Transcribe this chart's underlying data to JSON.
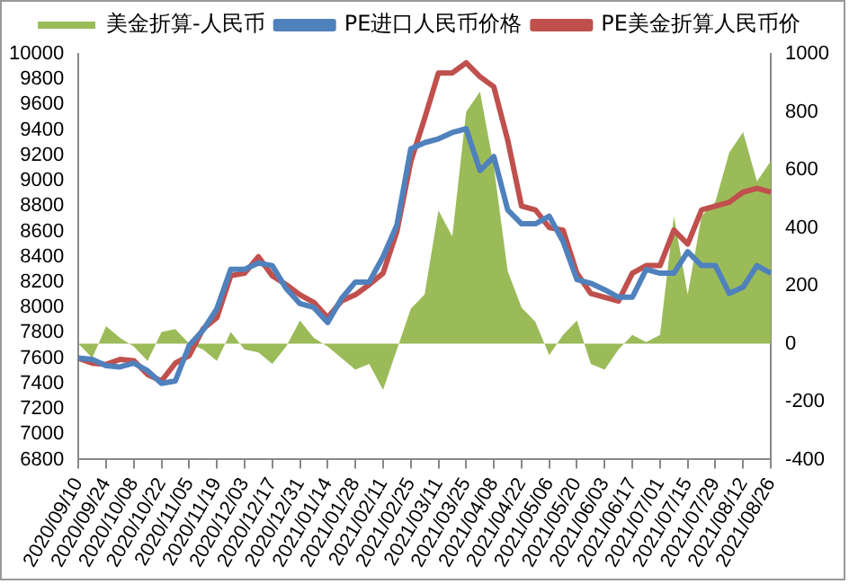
{
  "chart_data": {
    "type": "line",
    "categories": [
      "2020/09/10",
      null,
      "2020/09/24",
      null,
      "2020/10/08",
      null,
      "2020/10/22",
      null,
      "2020/11/05",
      null,
      "2020/11/19",
      null,
      "2020/12/03",
      null,
      "2020/12/17",
      null,
      "2020/12/31",
      null,
      "2021/01/14",
      null,
      "2021/01/28",
      null,
      "2021/02/11",
      null,
      "2021/02/25",
      null,
      "2021/03/11",
      null,
      "2021/03/25",
      null,
      "2021/04/08",
      null,
      "2021/04/22",
      null,
      "2021/05/06",
      null,
      "2021/05/20",
      null,
      "2021/06/03",
      null,
      "2021/06/17",
      null,
      "2021/07/01",
      null,
      "2021/07/15",
      null,
      "2021/07/29",
      null,
      "2021/08/12",
      null,
      "2021/08/26"
    ],
    "series": [
      {
        "name": "美金折算-人民币",
        "type": "area",
        "axis": "y2",
        "color": "#9bbb59",
        "values": [
          0,
          -50,
          60,
          20,
          -10,
          -60,
          40,
          50,
          0,
          -20,
          -60,
          40,
          -20,
          -30,
          -70,
          -10,
          80,
          20,
          -10,
          -50,
          -90,
          -70,
          -160,
          -20,
          120,
          170,
          460,
          370,
          800,
          870,
          610,
          250,
          125,
          75,
          -40,
          30,
          80,
          -70,
          -90,
          -20,
          30,
          5,
          30,
          440,
          170,
          440,
          490,
          660,
          730,
          560,
          630
        ]
      },
      {
        "name": "PE进口人民币价格",
        "type": "line",
        "color": "#4f81bd",
        "values": [
          7600,
          7590,
          7540,
          7530,
          7560,
          7500,
          7400,
          7420,
          7700,
          7820,
          7990,
          8300,
          8300,
          8350,
          8330,
          8150,
          8030,
          8000,
          7880,
          8070,
          8200,
          8200,
          8400,
          8650,
          9250,
          9300,
          9330,
          9380,
          9410,
          9080,
          9190,
          8770,
          8660,
          8660,
          8720,
          8520,
          8220,
          8190,
          8140,
          8080,
          8080,
          8300,
          8270,
          8270,
          8440,
          8330,
          8330,
          8110,
          8160,
          8330,
          8270
        ]
      },
      {
        "name": "PE美金折算人民币价",
        "type": "line",
        "color": "#c0504d",
        "values": [
          7600,
          7560,
          7550,
          7590,
          7580,
          7470,
          7420,
          7560,
          7620,
          7830,
          7920,
          8250,
          8270,
          8400,
          8250,
          8180,
          8100,
          8040,
          7920,
          8050,
          8100,
          8180,
          8270,
          8600,
          9150,
          9490,
          9850,
          9850,
          9930,
          9820,
          9740,
          9320,
          8800,
          8770,
          8630,
          8610,
          8270,
          8110,
          8080,
          8050,
          8270,
          8330,
          8330,
          8610,
          8500,
          8770,
          8800,
          8830,
          8910,
          8940,
          8910
        ]
      }
    ],
    "ylim": [
      6800,
      10000
    ],
    "yticks": [
      6800,
      7000,
      7200,
      7400,
      7600,
      7800,
      8000,
      8200,
      8400,
      8600,
      8800,
      9000,
      9200,
      9400,
      9600,
      9800,
      10000
    ],
    "y2lim": [
      -400,
      1000
    ],
    "y2ticks": [
      -400,
      -200,
      0,
      200,
      400,
      600,
      800,
      1000
    ],
    "grid": false,
    "legend": "top",
    "marker": "none",
    "line_style": "solid"
  }
}
